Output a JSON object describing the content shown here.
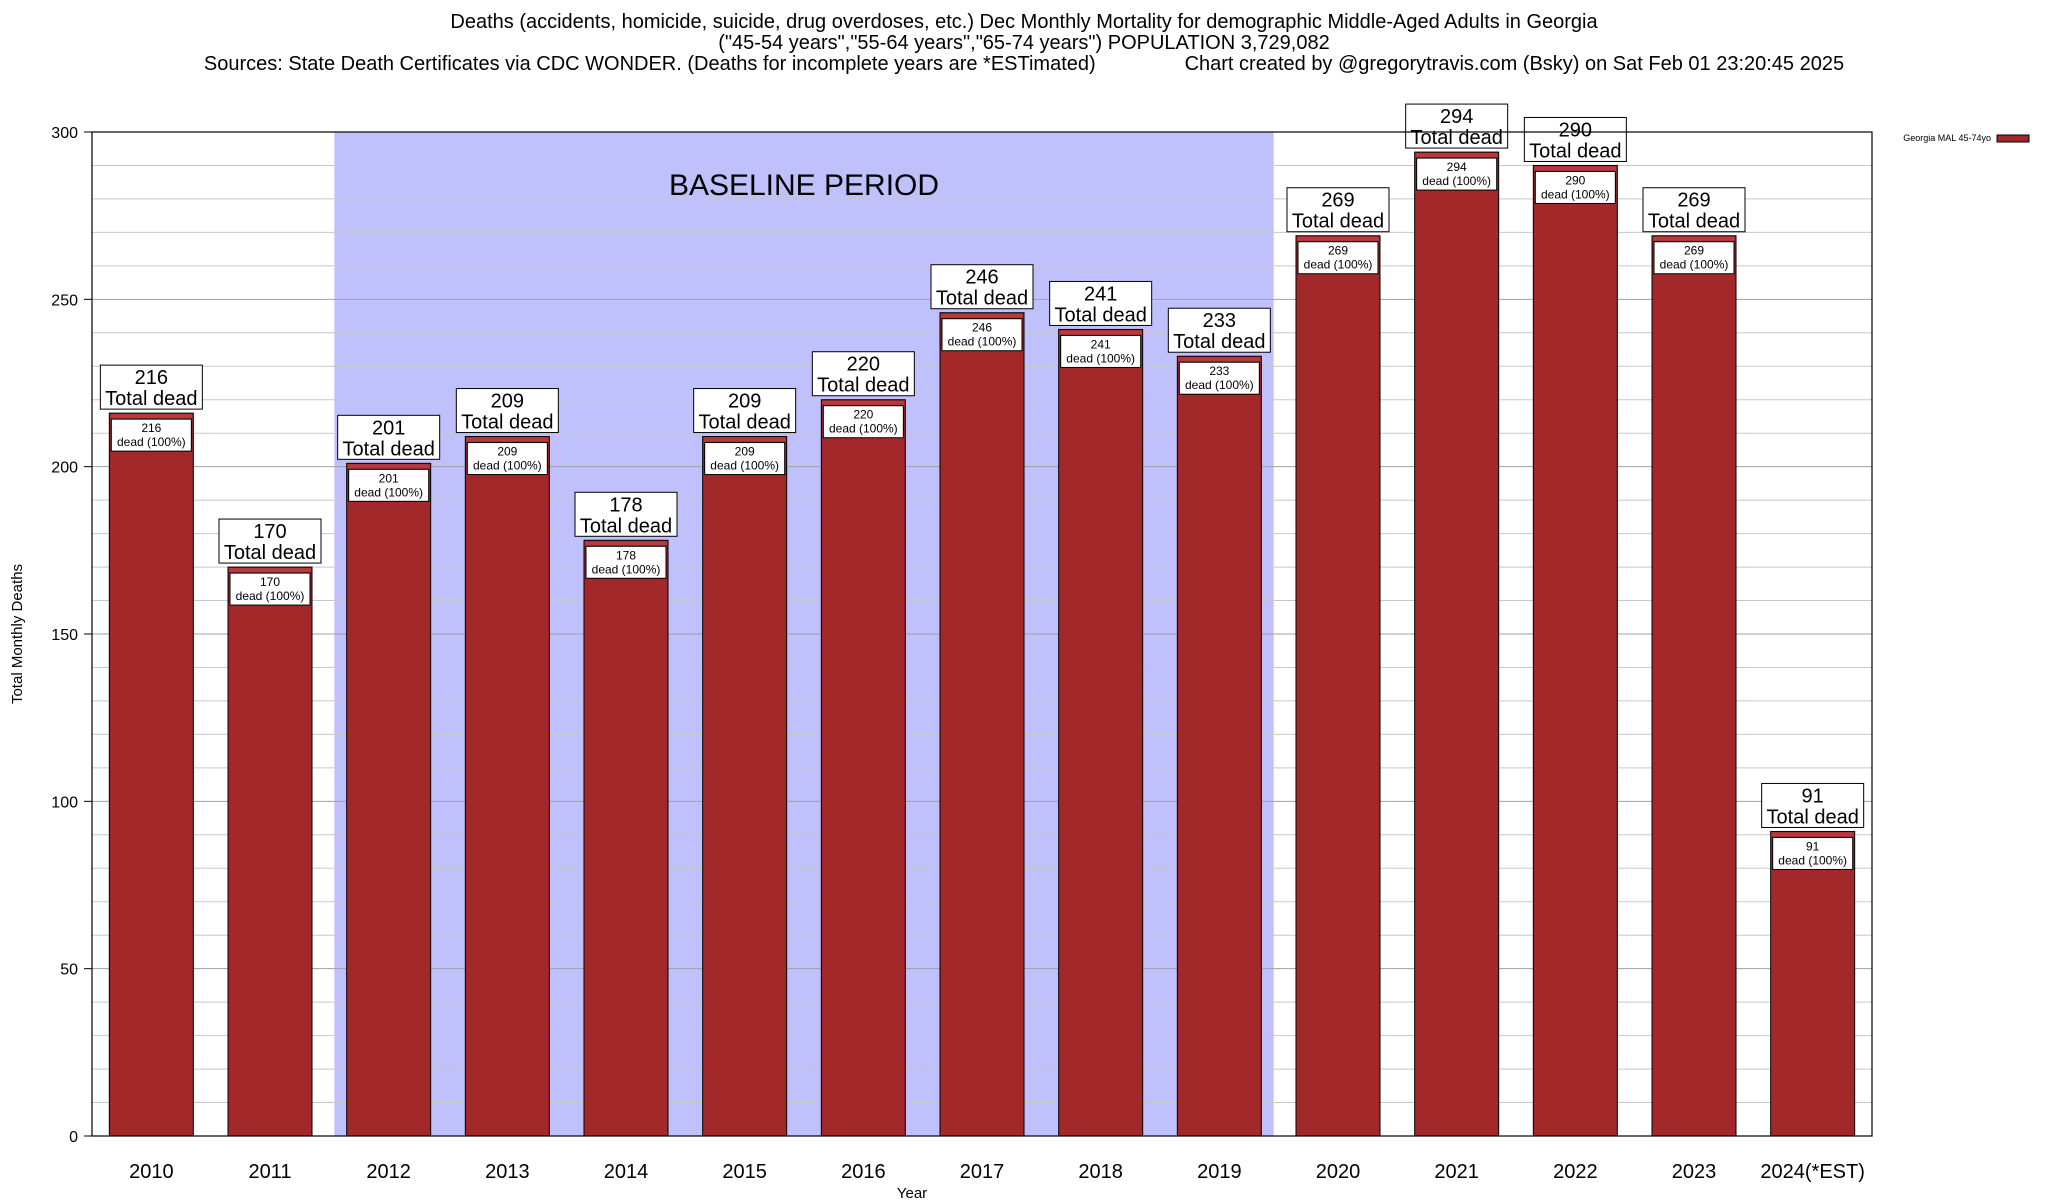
{
  "title_lines": [
    "Deaths (accidents, homicide, suicide, drug overdoses, etc.) Dec Monthly Mortality for demographic Middle-Aged Adults in Georgia",
    "(\"45-54 years\",\"55-64 years\",\"65-74 years\") POPULATION 3,729,082",
    "Sources: State Death Certificates via CDC WONDER. (Deaths for incomplete years are *ESTimated)                Chart created by @gregorytravis.com (Bsky) on Sat Feb 01 23:20:45 2025"
  ],
  "chart_data": {
    "type": "bar",
    "categories": [
      "2010",
      "2011",
      "2012",
      "2013",
      "2014",
      "2015",
      "2016",
      "2017",
      "2018",
      "2019",
      "2020",
      "2021",
      "2022",
      "2023",
      "2024(*EST)"
    ],
    "series": [
      {
        "name": "Georgia MAL 45-74yo",
        "values": [
          216,
          170,
          201,
          209,
          178,
          209,
          220,
          246,
          241,
          233,
          269,
          294,
          290,
          269,
          91
        ]
      }
    ],
    "xlabel": "Year",
    "ylabel": "Total Monthly Deaths",
    "ylim": [
      0,
      300
    ],
    "yticks": [
      0,
      50,
      100,
      150,
      200,
      250,
      300
    ],
    "grid": true,
    "legend_position": "top-right",
    "bar_color": "#a3282a",
    "cap_color": "#b83a3c",
    "baseline_color": "#c0c0fc",
    "baseline_period": {
      "label": "BASELINE PERIOD",
      "start": "2012",
      "end": "2019"
    },
    "label_total_suffix": "Total dead",
    "label_inner_suffix": "dead (100%)"
  }
}
